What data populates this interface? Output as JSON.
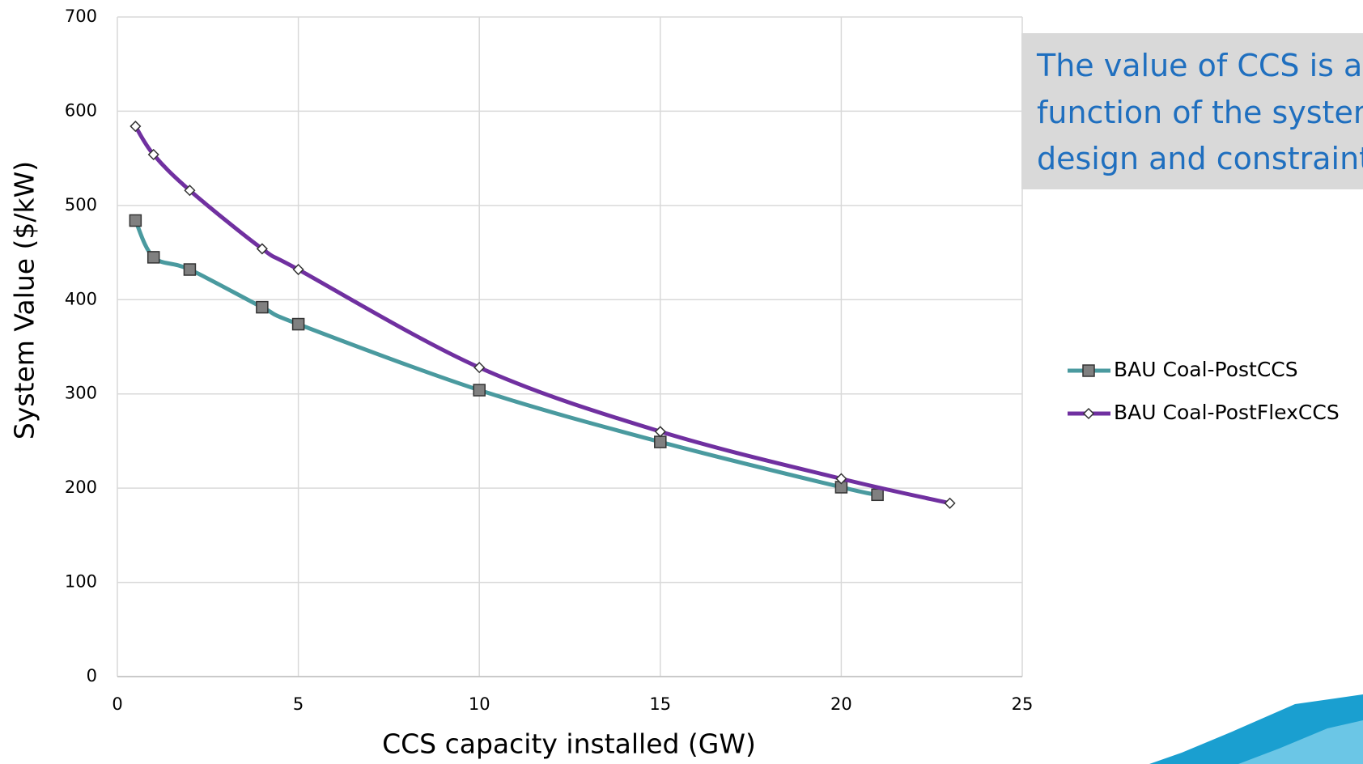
{
  "chart_data": {
    "type": "line",
    "x_label": "CCS capacity installed (GW)",
    "y_label": "System Value ($/kW)",
    "xlim": [
      0,
      25
    ],
    "xticks": [
      0,
      5,
      10,
      15,
      20,
      25
    ],
    "ylim": [
      0,
      700
    ],
    "yticks": [
      0,
      100,
      200,
      300,
      400,
      500,
      600,
      700
    ],
    "grid": true,
    "legend": "right",
    "series": [
      {
        "name": "BAU Coal-PostCCS",
        "color": "#4a9a9f",
        "marker": "square",
        "x": [
          0.5,
          1,
          2,
          4,
          5,
          10,
          15,
          20,
          21
        ],
        "values": [
          484,
          445,
          432,
          392,
          374,
          304,
          249,
          201,
          193
        ]
      },
      {
        "name": "BAU Coal-PostFlexCCS",
        "color": "#7030a0",
        "marker": "diamond",
        "x": [
          0.5,
          1,
          2,
          4,
          5,
          10,
          15,
          20,
          23
        ],
        "values": [
          584,
          554,
          516,
          454,
          432,
          328,
          260,
          210,
          184
        ]
      }
    ]
  },
  "callout": {
    "lines": [
      "The value of CCS is a",
      "function of the system",
      "design and constraints"
    ]
  }
}
